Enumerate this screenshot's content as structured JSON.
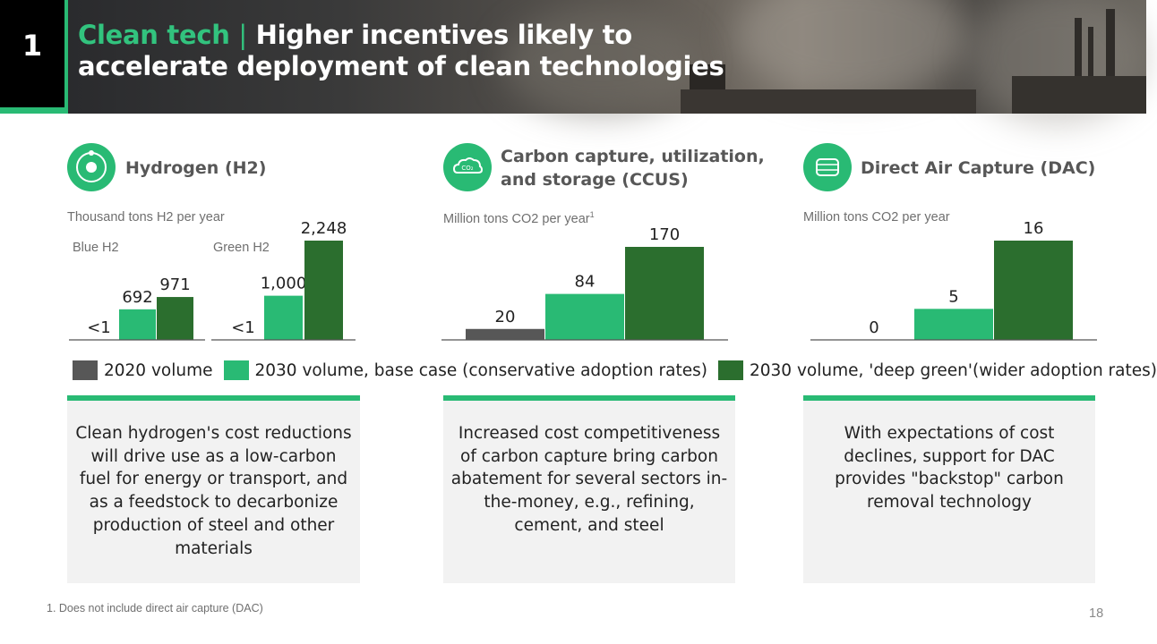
{
  "header": {
    "slide_number": "1",
    "title_accent": "Clean tech",
    "title_separator": "|",
    "title_rest": "Higher incentives likely to accelerate deployment of clean technologies"
  },
  "panels": [
    {
      "title": "Hydrogen (H2)",
      "unit": "Thousand tons H2 per year",
      "icon": "atom-icon"
    },
    {
      "title": "Carbon capture, utilization, and storage (CCUS)",
      "unit": "Million tons CO2 per year",
      "unit_sup": "1",
      "icon": "co2-cloud-icon"
    },
    {
      "title": "Direct Air Capture (DAC)",
      "unit": "Million tons CO2 per year",
      "icon": "co2-tank-icon"
    }
  ],
  "chart_data": [
    {
      "type": "bar",
      "title": "Hydrogen (H2)",
      "ylabel": "Thousand tons H2 per year",
      "groups": [
        {
          "name": "Blue H2",
          "labels": [
            "<1",
            "692",
            "971"
          ],
          "values": [
            0.5,
            692,
            971
          ]
        },
        {
          "name": "Green H2",
          "labels": [
            "<1",
            "1,000",
            "2,248"
          ],
          "values": [
            0.5,
            1000,
            2248
          ]
        }
      ],
      "series": [
        "2020 volume",
        "2030 volume, base case (conservative adoption rates)",
        "2030 volume, 'deep green'(wider adoption rates)"
      ],
      "ylim": [
        0,
        2248
      ]
    },
    {
      "type": "bar",
      "title": "Carbon capture, utilization, and storage (CCUS)",
      "ylabel": "Million tons CO2 per year",
      "labels": [
        "20",
        "84",
        "170"
      ],
      "values": [
        20,
        84,
        170
      ],
      "series": [
        "2020 volume",
        "2030 volume, base case (conservative adoption rates)",
        "2030 volume, 'deep green'(wider adoption rates)"
      ],
      "ylim": [
        0,
        170
      ]
    },
    {
      "type": "bar",
      "title": "Direct Air Capture (DAC)",
      "ylabel": "Million tons CO2 per year",
      "labels": [
        "0",
        "5",
        "16"
      ],
      "values": [
        0,
        5,
        16
      ],
      "series": [
        "2020 volume",
        "2030 volume, base case (conservative adoption rates)",
        "2030 volume, 'deep green'(wider adoption rates)"
      ],
      "ylim": [
        0,
        16
      ]
    }
  ],
  "legend": [
    {
      "label": "2020 volume",
      "color": "#575757"
    },
    {
      "label": "2030 volume, base case (conservative adoption rates)",
      "color": "#29ba74"
    },
    {
      "label": "2030 volume, 'deep green'(wider adoption rates)",
      "color": "#2b6e2e"
    }
  ],
  "text_boxes": [
    "Clean hydrogen's cost reductions will drive use as a low-carbon fuel for energy or transport, and as a feedstock to decarbonize production of steel and other materials",
    "Increased cost competitiveness of carbon capture bring carbon abatement for several sectors in-the-money, e.g., refining, cement, and steel",
    "With expectations of cost declines, support for DAC provides \"backstop\" carbon removal technology"
  ],
  "footnote": "1. Does not include direct air capture (DAC)",
  "page_number": "18"
}
